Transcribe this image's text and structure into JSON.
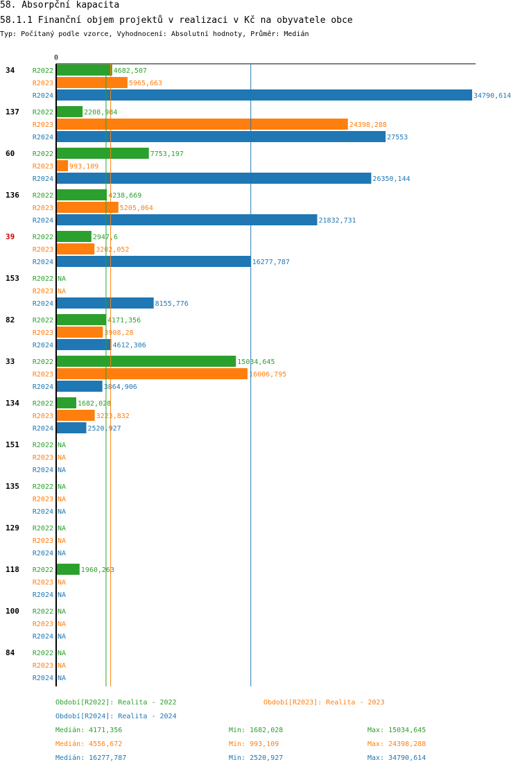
{
  "header": {
    "title": "58. Absorpční kapacita",
    "subtitle": "58.1.1 Finanční objem projektů v realizaci v Kč na obyvatele obce",
    "meta": "Typ: Počítaný podle vzorce, Vyhodnocení: Absolutní hodnoty, Průměr: Medián"
  },
  "colors": {
    "R2022": "#2ca02c",
    "R2023": "#ff7f0e",
    "R2024": "#1f77b4",
    "highlight_group": "#cc0000",
    "axis": "#000000"
  },
  "chart_data": {
    "type": "bar",
    "orientation": "horizontal",
    "axis_zero_label": "0",
    "xlim": [
      0,
      34790.614
    ],
    "series_names": [
      "R2022",
      "R2023",
      "R2024"
    ],
    "highlight_group": "39",
    "groups": [
      {
        "id": "34",
        "values": [
          {
            "v": 4682.507,
            "label": "4682,507"
          },
          {
            "v": 5965.663,
            "label": "5965,663"
          },
          {
            "v": 34790.614,
            "label": "34790,614"
          }
        ]
      },
      {
        "id": "137",
        "values": [
          {
            "v": 2208.984,
            "label": "2208,984"
          },
          {
            "v": 24398.288,
            "label": "24398,288"
          },
          {
            "v": 27553,
            "label": "27553"
          }
        ]
      },
      {
        "id": "60",
        "values": [
          {
            "v": 7753.197,
            "label": "7753,197"
          },
          {
            "v": 993.109,
            "label": "993,109"
          },
          {
            "v": 26350.144,
            "label": "26350,144"
          }
        ]
      },
      {
        "id": "136",
        "values": [
          {
            "v": 4238.669,
            "label": "4238,669"
          },
          {
            "v": 5205.064,
            "label": "5205,064"
          },
          {
            "v": 21832.731,
            "label": "21832,731"
          }
        ]
      },
      {
        "id": "39",
        "values": [
          {
            "v": 2947.6,
            "label": "2947,6"
          },
          {
            "v": 3202.052,
            "label": "3202,052"
          },
          {
            "v": 16277.787,
            "label": "16277,787"
          }
        ]
      },
      {
        "id": "153",
        "values": [
          {
            "v": null,
            "label": "NA"
          },
          {
            "v": null,
            "label": "NA"
          },
          {
            "v": 8155.776,
            "label": "8155,776"
          }
        ]
      },
      {
        "id": "82",
        "values": [
          {
            "v": 4171.356,
            "label": "4171,356"
          },
          {
            "v": 3908.28,
            "label": "3908,28"
          },
          {
            "v": 4612.306,
            "label": "4612,306"
          }
        ]
      },
      {
        "id": "33",
        "values": [
          {
            "v": 15034.645,
            "label": "15034,645"
          },
          {
            "v": 16006.795,
            "label": "16006,795"
          },
          {
            "v": 3864.906,
            "label": "3864,906"
          }
        ]
      },
      {
        "id": "134",
        "values": [
          {
            "v": 1682.028,
            "label": "1682,028"
          },
          {
            "v": 3223.832,
            "label": "3223,832"
          },
          {
            "v": 2520.927,
            "label": "2520,927"
          }
        ]
      },
      {
        "id": "151",
        "values": [
          {
            "v": null,
            "label": "NA"
          },
          {
            "v": null,
            "label": "NA"
          },
          {
            "v": null,
            "label": "NA"
          }
        ]
      },
      {
        "id": "135",
        "values": [
          {
            "v": null,
            "label": "NA"
          },
          {
            "v": null,
            "label": "NA"
          },
          {
            "v": null,
            "label": "NA"
          }
        ]
      },
      {
        "id": "129",
        "values": [
          {
            "v": null,
            "label": "NA"
          },
          {
            "v": null,
            "label": "NA"
          },
          {
            "v": null,
            "label": "NA"
          }
        ]
      },
      {
        "id": "118",
        "values": [
          {
            "v": 1960.263,
            "label": "1960,263"
          },
          {
            "v": null,
            "label": "NA"
          },
          {
            "v": null,
            "label": "NA"
          }
        ]
      },
      {
        "id": "100",
        "values": [
          {
            "v": null,
            "label": "NA"
          },
          {
            "v": null,
            "label": "NA"
          },
          {
            "v": null,
            "label": "NA"
          }
        ]
      },
      {
        "id": "84",
        "values": [
          {
            "v": null,
            "label": "NA"
          },
          {
            "v": null,
            "label": "NA"
          },
          {
            "v": null,
            "label": "NA"
          }
        ]
      }
    ],
    "median_lines": [
      {
        "series": "R2022",
        "value": 4171.356
      },
      {
        "series": "R2023",
        "value": 4556.672
      },
      {
        "series": "R2024",
        "value": 16277.787
      }
    ]
  },
  "legend": {
    "r2022": "Období[R2022]: Realita - 2022",
    "r2023": "Období[R2023]: Realita - 2023",
    "r2024": "Období[R2024]: Realita - 2024"
  },
  "stats": [
    {
      "median": "Medián: 4171,356",
      "min": "Min: 1682,028",
      "max": "Max: 15034,645"
    },
    {
      "median": "Medián: 4556,672",
      "min": "Min: 993,109",
      "max": "Max: 24398,288"
    },
    {
      "median": "Medián: 16277,787",
      "min": "Min: 2520,927",
      "max": "Max: 34790,614"
    }
  ]
}
